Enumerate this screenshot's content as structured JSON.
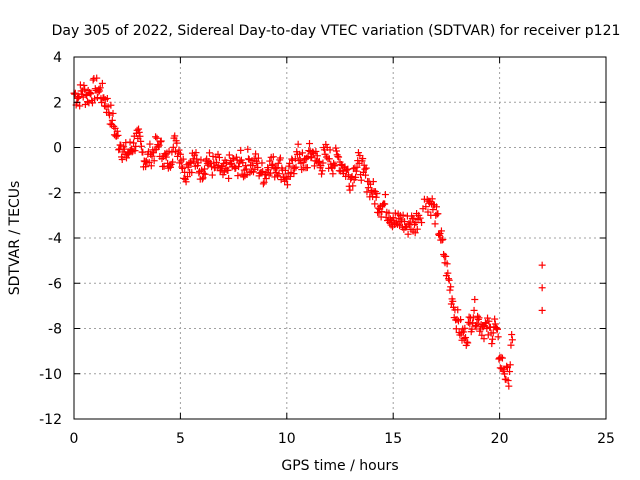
{
  "chart_data": {
    "type": "scatter",
    "title": "Day 305 of 2022, Sidereal Day-to-day VTEC variation (SDTVAR) for receiver p121",
    "xlabel": "GPS time / hours",
    "ylabel": "SDTVAR / TECUs",
    "xlim": [
      0,
      25
    ],
    "ylim": [
      -12,
      4
    ],
    "xticks": [
      0,
      5,
      10,
      15,
      20,
      25
    ],
    "yticks": [
      4,
      2,
      0,
      -2,
      -4,
      -6,
      -8,
      -10,
      -12
    ],
    "xtick_labels": [
      "0",
      "5",
      "10",
      "15",
      "20",
      "25"
    ],
    "ytick_labels": [
      "4",
      "2",
      "0",
      "-2",
      "-4",
      "-6",
      "-8",
      "-10",
      "-12"
    ],
    "grid": true,
    "marker": "+",
    "color": "#ff0000",
    "series": [
      {
        "name": "SDTVAR",
        "x": [
          0.0,
          0.2,
          0.4,
          0.6,
          0.8,
          1.0,
          1.2,
          1.4,
          1.6,
          1.8,
          2.0,
          2.2,
          2.4,
          2.6,
          2.8,
          3.0,
          3.2,
          3.4,
          3.6,
          3.8,
          4.0,
          4.2,
          4.4,
          4.6,
          4.8,
          5.0,
          5.2,
          5.4,
          5.6,
          5.8,
          6.0,
          6.2,
          6.4,
          6.6,
          6.8,
          7.0,
          7.2,
          7.4,
          7.6,
          7.8,
          8.0,
          8.2,
          8.4,
          8.6,
          8.8,
          9.0,
          9.2,
          9.4,
          9.6,
          9.8,
          10.0,
          10.2,
          10.4,
          10.6,
          10.8,
          11.0,
          11.2,
          11.4,
          11.6,
          11.8,
          12.0,
          12.2,
          12.4,
          12.6,
          12.8,
          13.0,
          13.2,
          13.4,
          13.6,
          13.8,
          14.0,
          14.2,
          14.4,
          14.6,
          14.8,
          15.0,
          15.2,
          15.4,
          15.6,
          15.8,
          16.0,
          16.2,
          16.6,
          16.8,
          17.0,
          17.2,
          17.4,
          17.6,
          17.8,
          18.0,
          18.2,
          18.4,
          18.6,
          18.8,
          19.0,
          19.2,
          19.4,
          19.6,
          19.8,
          20.0,
          20.2,
          20.4,
          20.6,
          22.0,
          22.0,
          22.0
        ],
        "y": [
          2.4,
          2.2,
          2.5,
          2.3,
          2.4,
          2.6,
          2.5,
          2.2,
          1.8,
          1.2,
          0.5,
          0.1,
          -0.3,
          -0.2,
          0.2,
          0.4,
          -0.2,
          -0.6,
          -0.3,
          -0.1,
          0.1,
          -0.4,
          -0.7,
          -0.2,
          0.3,
          -0.3,
          -1.1,
          -0.7,
          -0.5,
          -0.8,
          -1.0,
          -0.6,
          -0.7,
          -0.9,
          -0.8,
          -1.2,
          -1.0,
          -0.7,
          -0.9,
          -0.6,
          -1.0,
          -0.5,
          -0.8,
          -0.7,
          -1.1,
          -1.2,
          -0.6,
          -0.9,
          -0.7,
          -1.0,
          -1.4,
          -1.1,
          -0.5,
          -0.3,
          -0.9,
          -0.4,
          -0.2,
          -0.6,
          -0.8,
          -0.3,
          -0.5,
          -0.7,
          -0.4,
          -0.8,
          -1.0,
          -1.4,
          -0.9,
          -0.7,
          -1.1,
          -1.5,
          -1.9,
          -2.2,
          -2.6,
          -2.5,
          -2.9,
          -3.1,
          -3.4,
          -3.2,
          -3.5,
          -3.3,
          -3.4,
          -3.0,
          -2.3,
          -2.5,
          -3.0,
          -3.8,
          -4.8,
          -5.8,
          -6.8,
          -7.6,
          -8.2,
          -8.4,
          -7.8,
          -7.2,
          -7.6,
          -7.9,
          -8.0,
          -8.2,
          -7.8,
          -9.3,
          -9.8,
          -10.3,
          -8.5,
          -5.2,
          -6.2,
          -7.2
        ]
      }
    ]
  }
}
